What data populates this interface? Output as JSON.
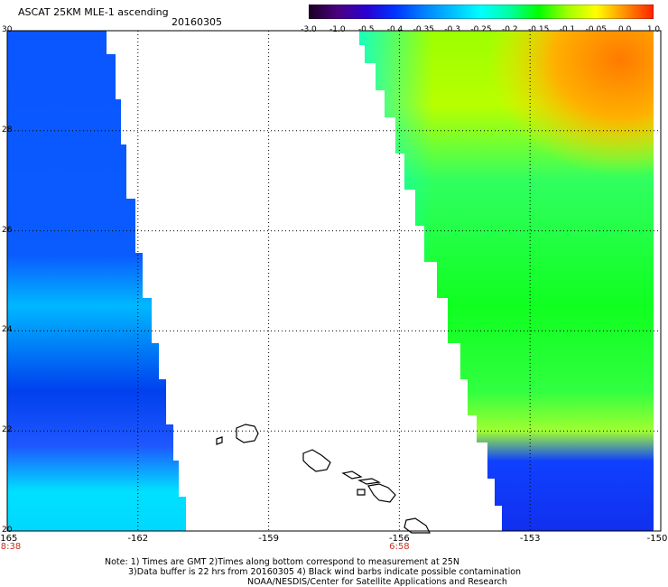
{
  "title": "ASCAT 25KM MLE-1 ascending",
  "date": "20160305",
  "colorbar": {
    "tick_labels": [
      "-3.0",
      "-1.0",
      "-0.5",
      "-0.4",
      "-0.35",
      "-0.3",
      "-0.25",
      "-0.2",
      "-0.15",
      "-0.1",
      "-0.05",
      "0.0",
      "1.0"
    ],
    "colors": [
      "#1a0022",
      "#4b007f",
      "#2a00d0",
      "#0033ff",
      "#0080ff",
      "#00c0ff",
      "#00ffff",
      "#00ffa0",
      "#00ff00",
      "#a0ff00",
      "#ffff00",
      "#ff9000",
      "#ff2000"
    ]
  },
  "map": {
    "lon_labels": [
      "-165",
      "-162",
      "-159",
      "-156",
      "-153",
      "-150"
    ],
    "lat_labels": [
      "30",
      "28",
      "26",
      "24",
      "22",
      "20"
    ],
    "times": [
      {
        "lon": "-165",
        "text": "8:38"
      },
      {
        "lon": "-156",
        "text": "6:58"
      }
    ]
  },
  "notes": {
    "line1": "Note: 1) Times are GMT 2)Times along bottom correspond to measurement at 25N",
    "line2": "3)Data buffer is 22 hrs from 20160305 4) Black wind barbs indicate possible contamination",
    "line3": "NOAA/NESDIS/Center for Satellite Applications and Research"
  }
}
